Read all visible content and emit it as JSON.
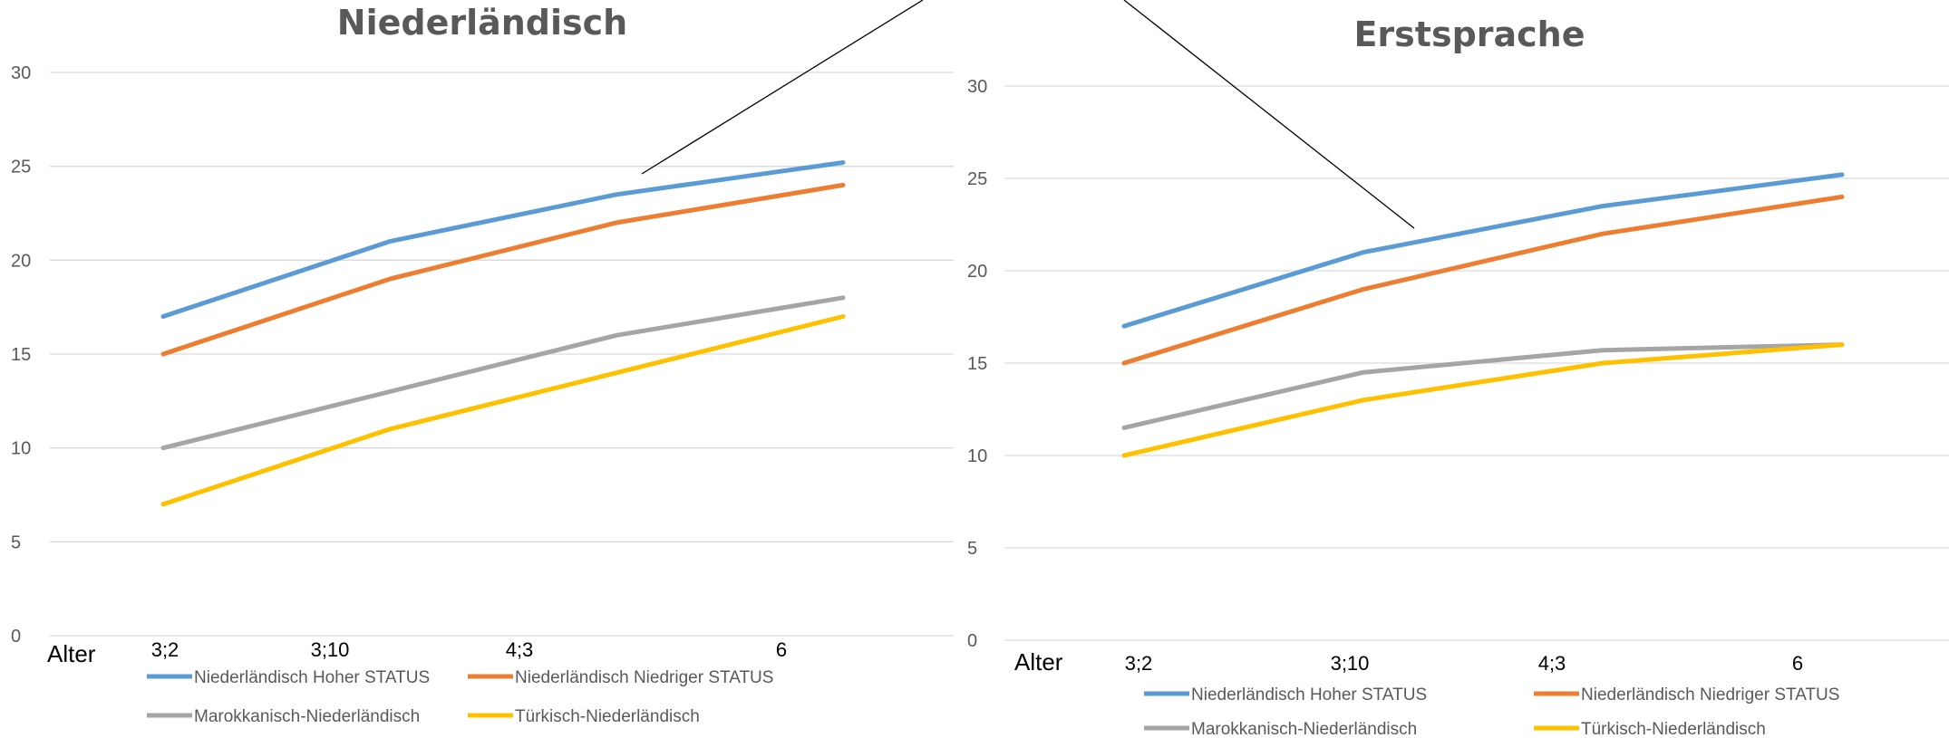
{
  "chart_data": [
    {
      "type": "line",
      "title": "Niederländisch",
      "xlabel": "Alter",
      "ylabel": "",
      "categories": [
        "",
        "",
        "",
        ""
      ],
      "x_tick_labels": [
        "3;2",
        "3;10",
        "4;3",
        "6"
      ],
      "y_ticks": [
        0,
        5,
        10,
        15,
        20,
        25,
        30
      ],
      "ylim": [
        0,
        30
      ],
      "grid": true,
      "legend_position": "bottom",
      "series": [
        {
          "name": "Niederländisch Hoher STATUS",
          "color": "#5B9BD5",
          "values": [
            17,
            21,
            23.5,
            25.2
          ]
        },
        {
          "name": "Niederländisch Niedriger STATUS",
          "color": "#ED7D31",
          "values": [
            15,
            19,
            22,
            24
          ]
        },
        {
          "name": "Marokkanisch-Niederländisch",
          "color": "#A5A5A5",
          "values": [
            10,
            13,
            16,
            18
          ]
        },
        {
          "name": "Türkisch-Niederländisch",
          "color": "#FFC000",
          "values": [
            7,
            11,
            14,
            17
          ]
        }
      ]
    },
    {
      "type": "line",
      "title": "Erstsprache",
      "xlabel": "Alter",
      "ylabel": "",
      "categories": [
        "",
        "",
        "",
        ""
      ],
      "x_tick_labels": [
        "3;2",
        "3;10",
        "4;3",
        "6"
      ],
      "y_ticks": [
        0,
        5,
        10,
        15,
        20,
        25,
        30
      ],
      "ylim": [
        0,
        30
      ],
      "grid": true,
      "legend_position": "bottom",
      "series": [
        {
          "name": "Niederländisch Hoher STATUS",
          "color": "#5B9BD5",
          "values": [
            17,
            21,
            23.5,
            25.2
          ]
        },
        {
          "name": "Niederländisch Niedriger STATUS",
          "color": "#ED7D31",
          "values": [
            15,
            19,
            22,
            24
          ]
        },
        {
          "name": "Marokkanisch-Niederländisch",
          "color": "#A5A5A5",
          "values": [
            11.5,
            14.5,
            15.7,
            16
          ]
        },
        {
          "name": "Türkisch-Niederländisch",
          "color": "#FFC000",
          "values": [
            10,
            13,
            15,
            16
          ]
        }
      ]
    }
  ]
}
